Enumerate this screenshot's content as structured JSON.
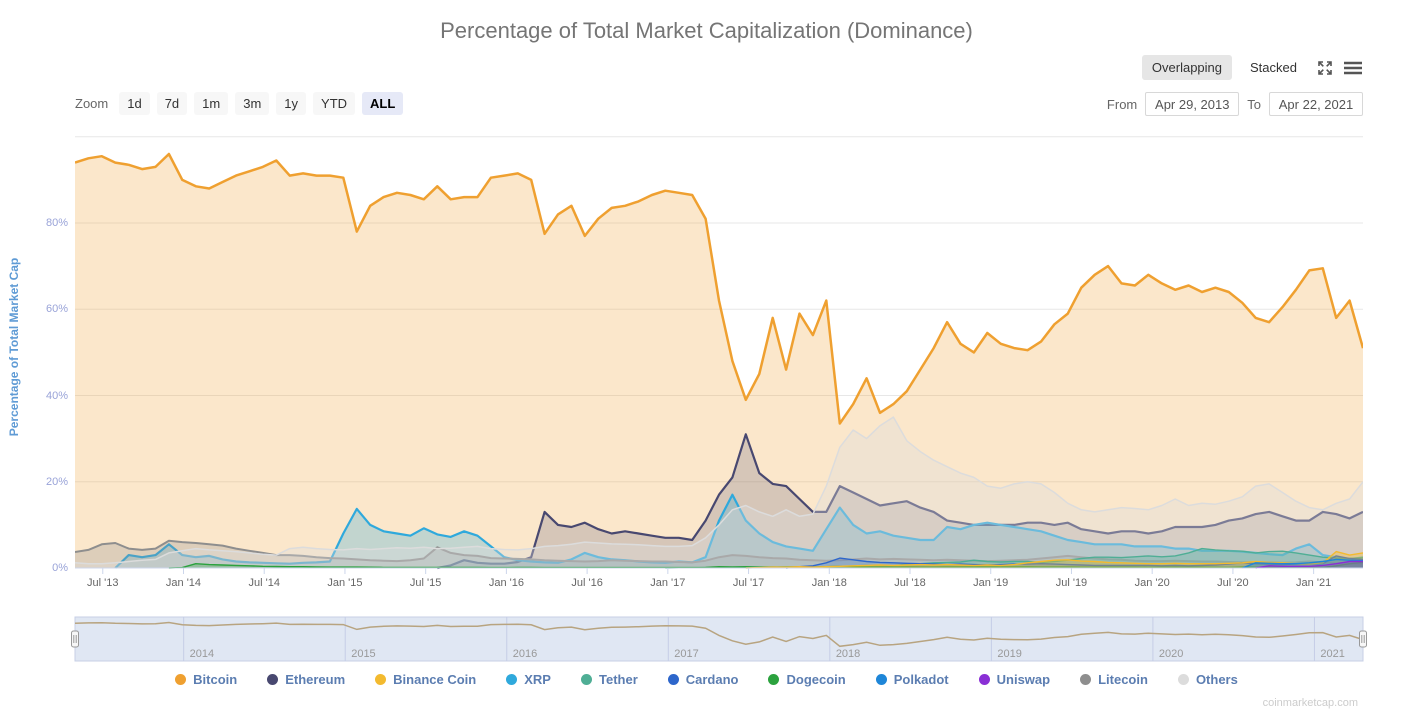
{
  "header": {
    "title": "Percentage of Total Market Capitalization (Dominance)",
    "mode_overlapping": "Overlapping",
    "mode_stacked": "Stacked",
    "mode_selected": "Overlapping"
  },
  "toolbar": {
    "zoom_label": "Zoom",
    "zoom_buttons": [
      "1d",
      "7d",
      "1m",
      "3m",
      "1y",
      "YTD",
      "ALL"
    ],
    "zoom_selected": "ALL",
    "from_label": "From",
    "from_value": "Apr 29, 2013",
    "to_label": "To",
    "to_value": "Apr 22, 2021"
  },
  "watermark": "coinmarketcap.com",
  "chart_data": {
    "type": "area",
    "mode": "overlapping",
    "title": "Percentage of Total Market Capitalization (Dominance)",
    "ylabel": "Percentage of Total Market Cap",
    "ylim": [
      0,
      103
    ],
    "ytick_values": [
      0,
      20,
      40,
      60,
      80
    ],
    "ytick_labels": [
      "0%",
      "20%",
      "40%",
      "60%",
      "80%"
    ],
    "x_start": "Apr 29, 2013",
    "x_end": "Apr 22, 2021",
    "x_interval": "monthly",
    "xtick_labels": [
      "Jul '13",
      "Jan '14",
      "Jul '14",
      "Jan '15",
      "Jul '15",
      "Jan '16",
      "Jul '16",
      "Jan '17",
      "Jul '17",
      "Jan '18",
      "Jul '18",
      "Jan '19",
      "Jul '19",
      "Jan '20",
      "Jul '20",
      "Jan '21"
    ],
    "navigator_years": [
      "2014",
      "2015",
      "2016",
      "2017",
      "2018",
      "2019",
      "2020",
      "2021"
    ],
    "navigator_line_color": "#b8a480",
    "series": [
      {
        "name": "Bitcoin",
        "color": "#EFA030",
        "values": [
          94,
          95,
          95.5,
          94,
          93.5,
          92.5,
          93,
          96,
          90,
          88.5,
          88,
          89.5,
          91,
          92,
          93,
          94.5,
          91,
          91.5,
          91,
          91,
          90.5,
          78,
          84,
          86,
          87,
          86.5,
          85.5,
          88.5,
          85.5,
          86,
          86,
          90.5,
          91,
          91.5,
          90,
          77.5,
          82,
          84,
          77,
          81,
          83.5,
          84,
          85,
          86.5,
          87.5,
          87,
          86.5,
          81,
          62,
          48,
          39,
          45,
          58,
          46,
          59,
          54,
          62,
          33.5,
          38,
          44,
          36,
          38,
          41,
          46,
          51,
          57,
          52,
          50,
          54.5,
          52,
          51,
          50.5,
          52.5,
          56.5,
          59,
          65,
          68,
          70,
          66,
          65.5,
          68,
          66,
          64.5,
          65.5,
          64,
          65,
          64,
          61.5,
          58,
          57,
          60.5,
          64.5,
          69,
          69.5,
          58,
          62,
          51
        ]
      },
      {
        "name": "Ethereum",
        "color": "#484870",
        "values": [
          0,
          0,
          0,
          0,
          0,
          0,
          0,
          0,
          0,
          0,
          0,
          0,
          0,
          0,
          0,
          0,
          0,
          0,
          0,
          0,
          0,
          0,
          0,
          0,
          0,
          0,
          0,
          0,
          0.6,
          1.8,
          1.2,
          1,
          1,
          1.4,
          2.5,
          13,
          10,
          9.5,
          10.5,
          9,
          8,
          8.5,
          8,
          7.5,
          7,
          7,
          6.5,
          11,
          17,
          21,
          31,
          22,
          19.5,
          19,
          16,
          13,
          13,
          19,
          17.5,
          16,
          14.5,
          15,
          15.5,
          14,
          13,
          11,
          10.5,
          10,
          10,
          10,
          10,
          10.5,
          10.5,
          10,
          10.5,
          9,
          8.5,
          8,
          8.5,
          8.5,
          8,
          8.5,
          9.5,
          9.5,
          9.5,
          10,
          11,
          11.5,
          12.5,
          13,
          12,
          11,
          11,
          13,
          12.5,
          11.5,
          13
        ]
      },
      {
        "name": "Binance Coin",
        "color": "#F3BA2F",
        "values": [
          0,
          0,
          0,
          0,
          0,
          0,
          0,
          0,
          0,
          0,
          0,
          0,
          0,
          0,
          0,
          0,
          0,
          0,
          0,
          0,
          0,
          0,
          0,
          0,
          0,
          0,
          0,
          0,
          0,
          0,
          0,
          0,
          0,
          0,
          0,
          0,
          0,
          0,
          0,
          0,
          0,
          0,
          0,
          0,
          0,
          0,
          0,
          0,
          0,
          0,
          0,
          0.1,
          0.2,
          0.2,
          0.3,
          0.2,
          0.3,
          0.4,
          0.5,
          0.6,
          0.7,
          0.6,
          0.7,
          0.8,
          0.7,
          0.8,
          0.7,
          0.6,
          0.7,
          0.6,
          0.8,
          1.2,
          1.5,
          1.8,
          1.9,
          1.6,
          1.5,
          1.3,
          1.2,
          1.1,
          1,
          1,
          1.1,
          1,
          1,
          1,
          1.1,
          1.2,
          1.5,
          1.3,
          1.2,
          1,
          0.9,
          1.2,
          3.8,
          3,
          3.5
        ]
      },
      {
        "name": "XRP",
        "color": "#2FA9DC",
        "values": [
          0,
          0,
          0,
          0,
          3,
          2.5,
          3,
          5.5,
          3,
          2.5,
          2.8,
          2,
          1.5,
          1.3,
          1.2,
          1.1,
          1,
          1.2,
          1.3,
          1.5,
          8,
          13.7,
          10,
          8.5,
          8,
          7.5,
          9.2,
          7.8,
          7.2,
          8.5,
          7.5,
          5,
          2.5,
          1.8,
          1.5,
          1.3,
          1.2,
          2,
          3.5,
          2.5,
          2,
          1.8,
          1.5,
          1.3,
          1.2,
          1.5,
          1.3,
          2.5,
          11,
          17,
          11,
          8,
          6,
          5,
          4.5,
          4,
          9,
          14,
          10,
          8,
          8.5,
          7.5,
          7,
          6.5,
          6.5,
          9.5,
          9,
          10,
          10.5,
          10,
          9.5,
          9,
          8.5,
          7.5,
          6.5,
          6,
          5.5,
          5.5,
          5.5,
          5,
          5,
          5,
          4.5,
          4.5,
          4,
          4,
          4,
          3.8,
          3.5,
          3.2,
          3,
          4.5,
          5.5,
          3,
          2.5,
          2,
          2.5
        ]
      },
      {
        "name": "Tether",
        "color": "#4FAE95",
        "values": [
          0,
          0,
          0,
          0,
          0,
          0,
          0,
          0,
          0,
          0,
          0,
          0,
          0,
          0,
          0,
          0,
          0,
          0,
          0,
          0,
          0,
          0,
          0,
          0,
          0,
          0,
          0,
          0,
          0,
          0,
          0,
          0,
          0,
          0,
          0,
          0,
          0,
          0,
          0,
          0,
          0,
          0,
          0,
          0,
          0,
          0.05,
          0.05,
          0.1,
          0.1,
          0.1,
          0.15,
          0.2,
          0.2,
          0.3,
          0.3,
          0.3,
          0.2,
          0.3,
          0.5,
          0.6,
          0.5,
          0.5,
          0.9,
          1,
          1.2,
          1.3,
          1.4,
          1.8,
          1.5,
          1.4,
          1.5,
          1.5,
          1.3,
          1.5,
          1.8,
          2.2,
          2.5,
          2.5,
          2.4,
          2.6,
          2.8,
          2.6,
          2.8,
          3.5,
          4.5,
          4.2,
          4,
          3.9,
          3.5,
          3.8,
          3.9,
          3.5,
          3,
          2.5,
          2.3,
          2.2,
          2.4
        ]
      },
      {
        "name": "Cardano",
        "color": "#2D66CB",
        "values": [
          0,
          0,
          0,
          0,
          0,
          0,
          0,
          0,
          0,
          0,
          0,
          0,
          0,
          0,
          0,
          0,
          0,
          0,
          0,
          0,
          0,
          0,
          0,
          0,
          0,
          0,
          0,
          0,
          0,
          0,
          0,
          0,
          0,
          0,
          0,
          0,
          0,
          0,
          0,
          0,
          0,
          0,
          0,
          0,
          0,
          0,
          0,
          0,
          0,
          0,
          0,
          0,
          0,
          0,
          0.3,
          0.5,
          1.2,
          2.3,
          1.9,
          1.5,
          1.3,
          1.2,
          1.1,
          1,
          0.9,
          0.8,
          0.9,
          0.8,
          0.7,
          0.8,
          0.9,
          0.9,
          1,
          0.9,
          0.8,
          0.7,
          0.6,
          0.6,
          0.6,
          0.6,
          0.6,
          0.5,
          0.6,
          0.5,
          0.6,
          0.7,
          0.9,
          1.2,
          1,
          0.9,
          0.8,
          0.9,
          0.9,
          1,
          2.8,
          2.2,
          2
        ]
      },
      {
        "name": "Dogecoin",
        "color": "#2BA23E",
        "values": [
          0,
          0,
          0,
          0,
          0,
          0,
          0,
          0,
          0.1,
          1,
          0.8,
          0.7,
          0.6,
          0.5,
          0.4,
          0.35,
          0.3,
          0.3,
          0.25,
          0.2,
          0.2,
          0.2,
          0.18,
          0.15,
          0.15,
          0.14,
          0.13,
          0.12,
          0.12,
          0.12,
          0.11,
          0.1,
          0.1,
          0.12,
          0.11,
          0.1,
          0.1,
          0.1,
          0.1,
          0.1,
          0.1,
          0.1,
          0.1,
          0.1,
          0.1,
          0.1,
          0.1,
          0.15,
          0.3,
          0.25,
          0.3,
          0.2,
          0.2,
          0.15,
          0.15,
          0.15,
          0.3,
          0.4,
          0.3,
          0.25,
          0.2,
          0.2,
          0.25,
          0.2,
          0.2,
          0.25,
          0.25,
          0.25,
          0.25,
          0.25,
          0.25,
          0.25,
          0.2,
          0.2,
          0.2,
          0.18,
          0.18,
          0.18,
          0.18,
          0.18,
          0.16,
          0.16,
          0.18,
          0.16,
          0.18,
          0.16,
          0.15,
          0.2,
          0.18,
          0.16,
          0.15,
          0.14,
          0.12,
          0.15,
          0.5,
          1,
          1.3
        ]
      },
      {
        "name": "Polkadot",
        "color": "#1E86D8",
        "values": [
          0,
          0,
          0,
          0,
          0,
          0,
          0,
          0,
          0,
          0,
          0,
          0,
          0,
          0,
          0,
          0,
          0,
          0,
          0,
          0,
          0,
          0,
          0,
          0,
          0,
          0,
          0,
          0,
          0,
          0,
          0,
          0,
          0,
          0,
          0,
          0,
          0,
          0,
          0,
          0,
          0,
          0,
          0,
          0,
          0,
          0,
          0,
          0,
          0,
          0,
          0,
          0,
          0,
          0,
          0,
          0,
          0,
          0,
          0,
          0,
          0,
          0,
          0,
          0,
          0,
          0,
          0,
          0,
          0,
          0,
          0,
          0,
          0,
          0,
          0,
          0,
          0,
          0,
          0,
          0,
          0,
          0,
          0,
          0,
          0,
          0,
          0,
          0,
          1.2,
          1.1,
          1,
          1,
          1.2,
          1.5,
          2,
          1.8,
          1.7
        ]
      },
      {
        "name": "Uniswap",
        "color": "#8A2FD5",
        "values": [
          0,
          0,
          0,
          0,
          0,
          0,
          0,
          0,
          0,
          0,
          0,
          0,
          0,
          0,
          0,
          0,
          0,
          0,
          0,
          0,
          0,
          0,
          0,
          0,
          0,
          0,
          0,
          0,
          0,
          0,
          0,
          0,
          0,
          0,
          0,
          0,
          0,
          0,
          0,
          0,
          0,
          0,
          0,
          0,
          0,
          0,
          0,
          0,
          0,
          0,
          0,
          0,
          0,
          0,
          0,
          0,
          0,
          0,
          0,
          0,
          0,
          0,
          0,
          0,
          0,
          0,
          0,
          0,
          0,
          0,
          0,
          0,
          0,
          0,
          0,
          0,
          0,
          0,
          0,
          0,
          0,
          0,
          0,
          0,
          0,
          0,
          0,
          0,
          0,
          0.5,
          0.4,
          0.4,
          0.4,
          0.6,
          1,
          1.5,
          1.5
        ]
      },
      {
        "name": "Litecoin",
        "color": "#8E8E8E",
        "values": [
          3.7,
          4.2,
          5.5,
          5.8,
          4.5,
          4.2,
          4.5,
          6.3,
          6,
          5.8,
          5.5,
          5.2,
          4.5,
          4,
          3.5,
          3,
          3,
          2.8,
          2.5,
          2.3,
          2.2,
          2,
          1.8,
          1.7,
          1.6,
          1.8,
          2.2,
          4.8,
          3.5,
          3,
          2.8,
          2.3,
          2.2,
          2.1,
          2,
          1.8,
          1.7,
          1.6,
          1.5,
          1.6,
          1.8,
          1.7,
          1.6,
          1.5,
          1.5,
          1.4,
          1.3,
          1.7,
          2.5,
          3,
          2.8,
          2.5,
          2.3,
          2.2,
          1.9,
          1.8,
          1.7,
          1.8,
          2,
          2.2,
          2,
          2.1,
          2,
          1.9,
          1.8,
          1.9,
          1.8,
          1.7,
          1.6,
          1.7,
          1.8,
          1.9,
          2.2,
          2.5,
          2.8,
          2.5,
          2.2,
          2,
          1.9,
          1.7,
          1.6,
          1.6,
          1.7,
          1.6,
          1.5,
          1.5,
          1.4,
          1.3,
          1.4,
          1.3,
          1.2,
          1.3,
          1.5,
          1.3,
          1.1,
          1,
          1.1
        ]
      },
      {
        "name": "Others",
        "color": "#DCDCDC",
        "values": [
          1.2,
          1,
          1,
          1.2,
          1.5,
          1.8,
          2,
          3.5,
          4,
          4.5,
          4.2,
          4,
          3.8,
          3.5,
          3.2,
          3,
          4.5,
          4.8,
          4.5,
          4.3,
          4.2,
          4.5,
          4.3,
          4.5,
          4.7,
          4.6,
          4.8,
          4.5,
          4.6,
          4.8,
          5,
          4.5,
          4.3,
          4.2,
          4.5,
          5,
          5.2,
          5.5,
          6,
          5.8,
          5.6,
          5.5,
          5.4,
          5.2,
          5,
          5,
          5.2,
          7,
          10,
          13.5,
          14.5,
          13,
          12,
          13.5,
          12,
          12.5,
          19,
          28,
          32,
          30,
          33,
          35,
          29.5,
          27,
          25,
          23.5,
          22,
          21,
          19,
          18.5,
          19.5,
          20,
          19.5,
          17.5,
          15,
          13.5,
          13,
          13.5,
          14,
          13.8,
          13.5,
          14.5,
          16,
          14.5,
          15,
          14.8,
          15.5,
          16.5,
          19,
          19.5,
          17.5,
          15.5,
          14,
          13.5,
          15,
          16,
          20
        ]
      }
    ]
  }
}
